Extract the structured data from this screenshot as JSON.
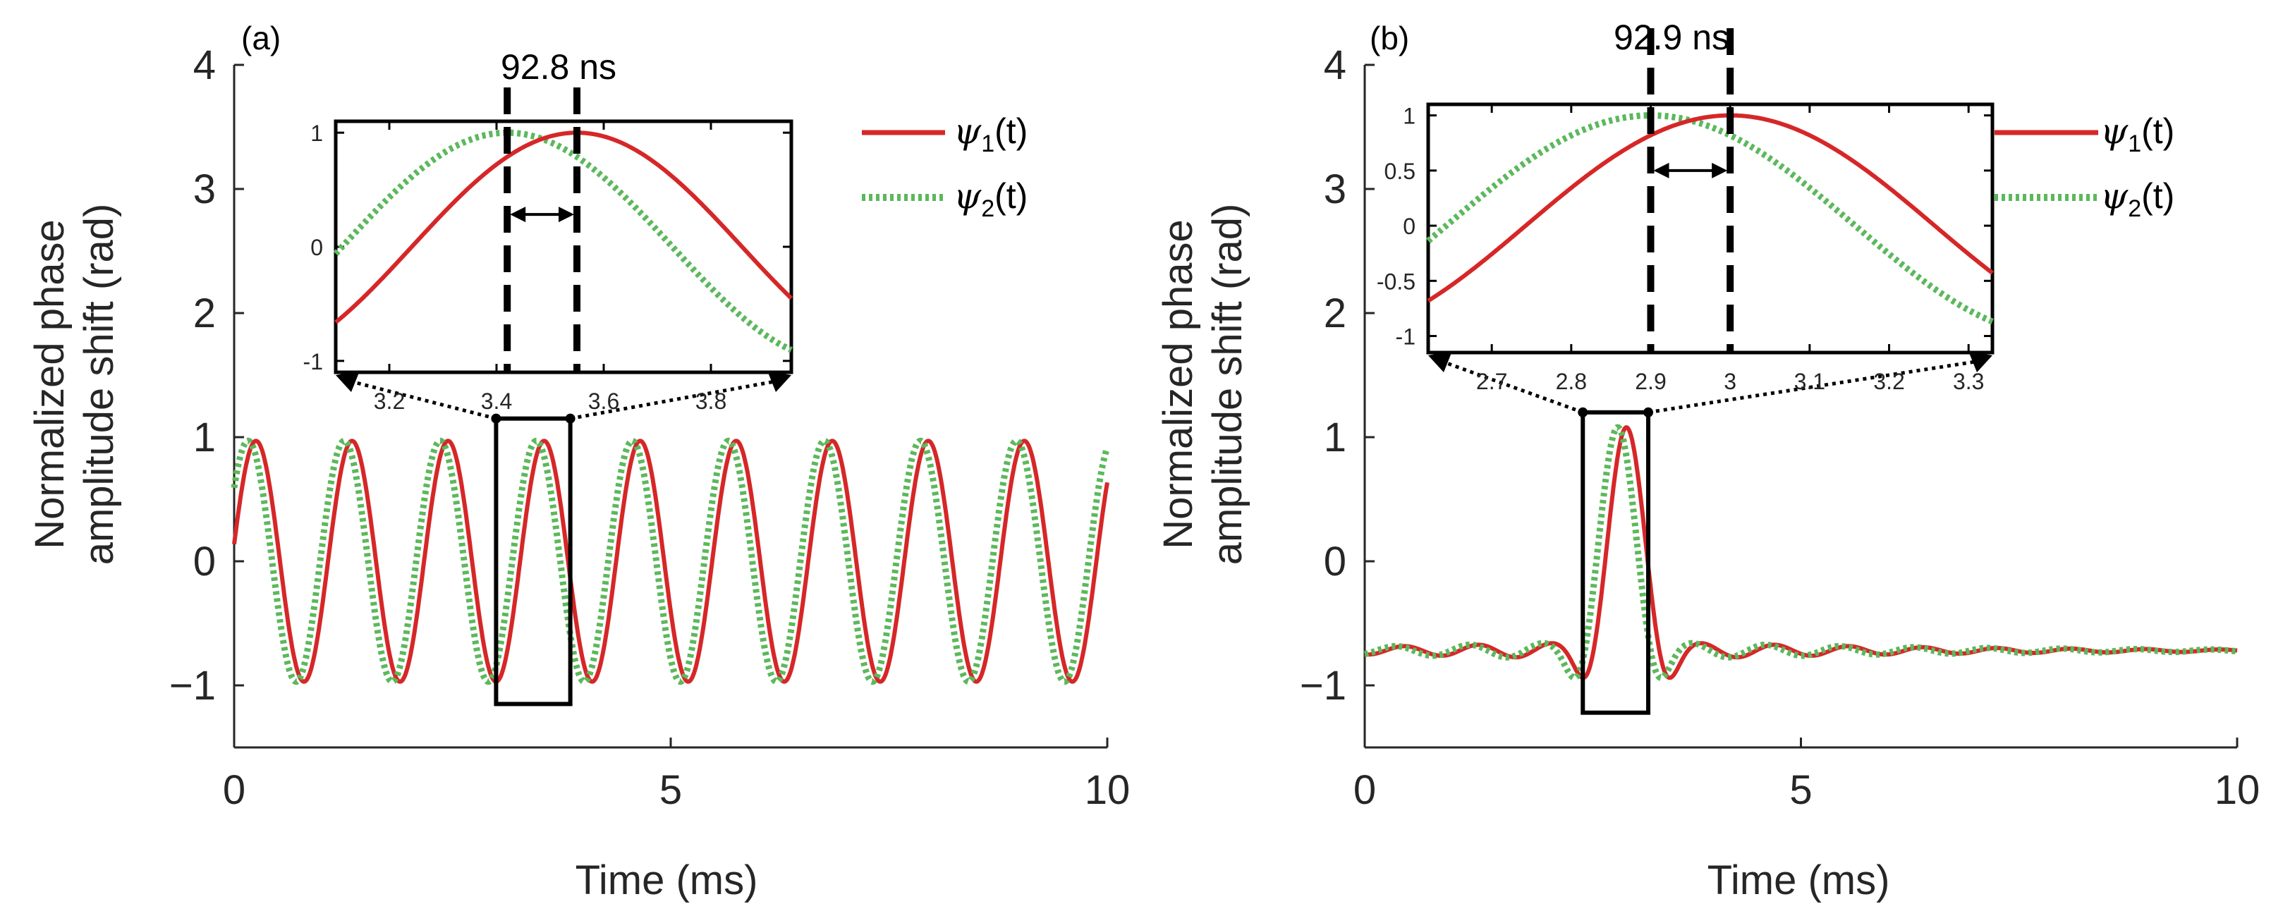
{
  "colors": {
    "psi1": "#d62728",
    "psi2": "#5cb85c",
    "axis": "#262626"
  },
  "chart_data": [
    {
      "panel": "(a)",
      "type": "line",
      "title": "",
      "xlabel": "Time (ms)",
      "ylabel_line1": "Normalized phase",
      "ylabel_line2": "amplitude shift (rad)",
      "xlim": [
        0,
        10
      ],
      "ylim": [
        -1.5,
        4
      ],
      "xticks": [
        0,
        5,
        10
      ],
      "yticks": [
        -1,
        0,
        1,
        2,
        3,
        4
      ],
      "xtick_labels": [
        "0",
        "5",
        "10"
      ],
      "ytick_labels": [
        "−1",
        "0",
        "1",
        "2",
        "3",
        "4"
      ],
      "series": [
        {
          "name": "psi1",
          "model": "sine",
          "amplitude": 0.97,
          "period_ms": 1.1,
          "peak_ms": 3.55,
          "offset": 0
        },
        {
          "name": "psi2",
          "model": "sine",
          "amplitude": 0.97,
          "period_ms": 1.1,
          "peak_ms": 3.46,
          "offset": 0
        }
      ],
      "zoom_box": {
        "x": [
          3.0,
          3.85
        ],
        "y": [
          -1.15,
          1.15
        ]
      },
      "inset": {
        "xlim": [
          3.1,
          3.95
        ],
        "ylim": [
          -1.1,
          1.1
        ],
        "xticks": [
          3.2,
          3.4,
          3.6,
          3.8
        ],
        "xtick_labels": [
          "3.2",
          "3.4",
          "3.6",
          "3.8"
        ],
        "yticks": [
          -1,
          0,
          1
        ],
        "ytick_labels": [
          "-1",
          "0",
          "1"
        ],
        "markers": [
          3.42,
          3.55
        ],
        "delay_label": "92.8 ns"
      },
      "legend": {
        "location": "top-right",
        "entries": [
          "psi1",
          "psi2"
        ]
      }
    },
    {
      "panel": "(b)",
      "type": "line",
      "title": "",
      "xlabel": "Time (ms)",
      "ylabel_line1": "Normalized phase",
      "ylabel_line2": "amplitude shift (rad)",
      "xlim": [
        0,
        10
      ],
      "ylim": [
        -1.5,
        4
      ],
      "xticks": [
        0,
        5,
        10
      ],
      "yticks": [
        -1,
        0,
        1,
        2,
        3,
        4
      ],
      "xtick_labels": [
        "0",
        "5",
        "10"
      ],
      "ytick_labels": [
        "−1",
        "0",
        "1",
        "2",
        "3",
        "4"
      ],
      "series": [
        {
          "name": "psi1",
          "model": "pulse",
          "baseline": -0.72,
          "ripple": 0.08,
          "ripple_period_ms": 0.85,
          "pulse_peak": 1.0,
          "pulse_center_ms": 3.0,
          "pulse_width_ms": 0.28
        },
        {
          "name": "psi2",
          "model": "pulse",
          "baseline": -0.72,
          "ripple": 0.08,
          "ripple_period_ms": 0.85,
          "pulse_peak": 1.0,
          "pulse_center_ms": 2.9,
          "pulse_width_ms": 0.28
        }
      ],
      "zoom_box": {
        "x": [
          2.5,
          3.25
        ],
        "y": [
          -1.22,
          1.2
        ]
      },
      "inset": {
        "xlim": [
          2.62,
          3.33
        ],
        "ylim": [
          -1.15,
          1.1
        ],
        "xticks": [
          2.7,
          2.8,
          2.9,
          3.0,
          3.1,
          3.2,
          3.3
        ],
        "xtick_labels": [
          "2.7",
          "2.8",
          "2.9",
          "3",
          "3.1",
          "3.2",
          "3.3"
        ],
        "yticks": [
          -1,
          -0.5,
          0,
          0.5,
          1
        ],
        "ytick_labels": [
          "-1",
          "-0.5",
          "0",
          "0.5",
          "1"
        ],
        "markers": [
          2.9,
          3.0
        ],
        "delay_label": "92.9 ns"
      },
      "legend": {
        "location": "top-right",
        "entries": [
          "psi1",
          "psi2"
        ]
      }
    }
  ],
  "legend_labels": {
    "psi1_symbol": "ψ",
    "psi1_sub": "1",
    "psi1_suffix": "(t)",
    "psi2_symbol": "ψ",
    "psi2_sub": "2",
    "psi2_suffix": "(t)"
  }
}
